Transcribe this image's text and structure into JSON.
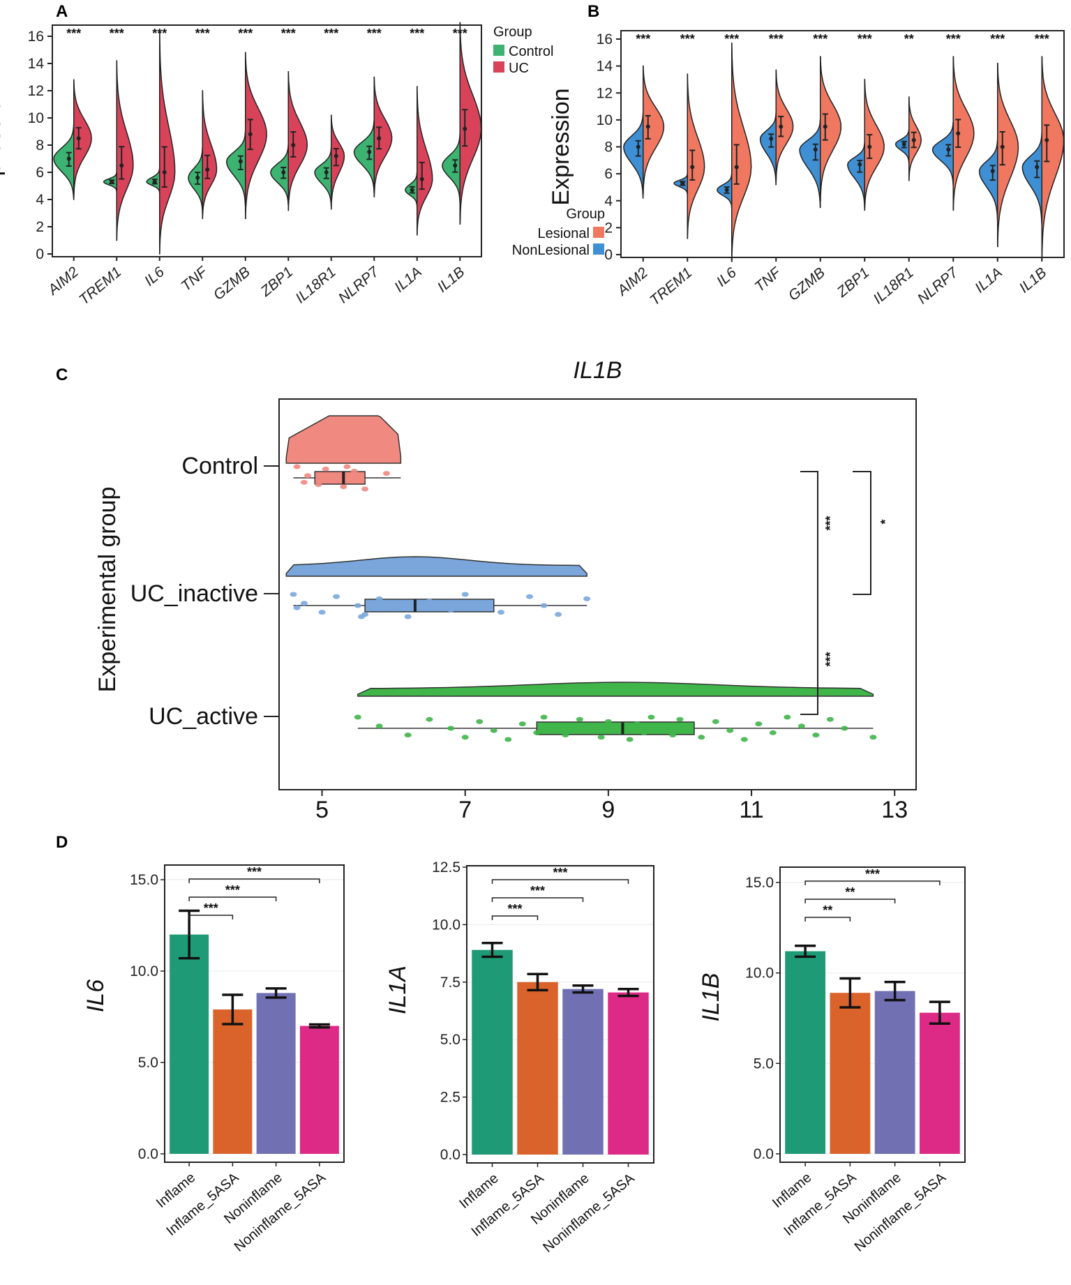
{
  "panel_labels": [
    "A",
    "B",
    "C",
    "D"
  ],
  "chart_data": [
    {
      "panel": "A",
      "type": "violin",
      "ylabel": "Expression",
      "ylim": [
        0,
        16
      ],
      "yticks": [
        0,
        2,
        4,
        6,
        8,
        10,
        12,
        14,
        16
      ],
      "legend": {
        "title": "Group",
        "position": "top-right",
        "entries": [
          {
            "name": "Control",
            "color": "#3cb371"
          },
          {
            "name": "UC",
            "color": "#d9435a"
          }
        ]
      },
      "categories": [
        "AIM2",
        "TREM1",
        "IL6",
        "TNF",
        "GZMB",
        "ZBP1",
        "IL18R1",
        "NLRP7",
        "IL1A",
        "IL1B"
      ],
      "significance": [
        "***",
        "***",
        "***",
        "***",
        "***",
        "***",
        "***",
        "***",
        "***",
        "***"
      ],
      "series": [
        {
          "name": "Control",
          "color": "#3cb371",
          "center": [
            7.0,
            5.3,
            5.3,
            5.6,
            6.8,
            6.0,
            6.0,
            7.5,
            4.7,
            6.5
          ],
          "min": [
            4.0,
            4.6,
            4.5,
            3.0,
            3.5,
            3.6,
            3.5,
            4.5,
            3.5,
            3.8
          ],
          "max": [
            9.5,
            6.0,
            6.3,
            7.8,
            9.0,
            8.0,
            7.8,
            9.8,
            6.0,
            8.8
          ],
          "width": [
            0.85,
            0.55,
            0.55,
            0.6,
            0.8,
            0.75,
            0.7,
            0.85,
            0.5,
            0.75
          ]
        },
        {
          "name": "UC",
          "color": "#d9435a",
          "center": [
            8.5,
            6.5,
            6.0,
            6.2,
            8.8,
            8.0,
            7.2,
            8.5,
            5.5,
            9.2
          ],
          "min": [
            4.2,
            1.0,
            0.0,
            2.6,
            2.6,
            3.2,
            3.3,
            4.2,
            1.4,
            2.2
          ],
          "max": [
            12.8,
            14.2,
            16.4,
            12.0,
            14.8,
            13.4,
            10.2,
            13.0,
            12.3,
            17.0
          ],
          "width": [
            0.75,
            0.7,
            0.65,
            0.6,
            0.9,
            0.8,
            0.55,
            0.75,
            0.65,
            0.9
          ]
        }
      ]
    },
    {
      "panel": "B",
      "type": "violin",
      "ylabel": "Expression",
      "ylim": [
        0,
        16
      ],
      "yticks": [
        0,
        2,
        4,
        6,
        8,
        10,
        12,
        14,
        16
      ],
      "legend": {
        "title": "Group",
        "position": "left",
        "entries": [
          {
            "name": "Lesional",
            "color": "#f07860"
          },
          {
            "name": "NonLesional",
            "color": "#3f8fd4"
          }
        ]
      },
      "categories": [
        "AIM2",
        "TREM1",
        "IL6",
        "TNF",
        "GZMB",
        "ZBP1",
        "IL18R1",
        "NLRP7",
        "IL1A",
        "IL1B"
      ],
      "significance": [
        "***",
        "***",
        "***",
        "***",
        "***",
        "***",
        "**",
        "***",
        "***",
        "***"
      ],
      "series": [
        {
          "name": "NonLesional",
          "color": "#3f8fd4",
          "center": [
            8.0,
            5.3,
            4.8,
            8.6,
            7.8,
            6.7,
            8.2,
            7.8,
            6.2,
            6.5
          ],
          "min": [
            4.2,
            4.5,
            3.5,
            5.2,
            3.5,
            3.5,
            6.8,
            5.2,
            2.5,
            2.2
          ],
          "max": [
            10.5,
            6.0,
            6.0,
            10.5,
            10.0,
            8.3,
            9.3,
            9.8,
            8.5,
            9.0
          ],
          "width": [
            0.8,
            0.55,
            0.6,
            0.65,
            0.85,
            0.7,
            0.55,
            0.85,
            0.75,
            0.8
          ]
        },
        {
          "name": "Lesional",
          "color": "#f07860",
          "center": [
            9.5,
            6.5,
            6.5,
            9.5,
            9.5,
            8.0,
            8.5,
            9.0,
            8.0,
            8.5
          ],
          "min": [
            4.5,
            1.2,
            -0.5,
            5.5,
            4.0,
            3.3,
            5.5,
            3.3,
            0.6,
            -0.3
          ],
          "max": [
            14.0,
            13.4,
            15.7,
            13.7,
            14.7,
            13.0,
            11.7,
            14.7,
            14.2,
            14.7
          ],
          "width": [
            0.85,
            0.7,
            0.8,
            0.7,
            0.85,
            0.8,
            0.5,
            0.85,
            0.85,
            0.9
          ]
        }
      ]
    },
    {
      "panel": "C",
      "type": "raincloud",
      "title": "IL1B",
      "ylabel": "Experimental group",
      "xlim": [
        4.4,
        13.3
      ],
      "xticks": [
        5,
        7,
        9,
        11,
        13
      ],
      "groups": [
        {
          "name": "Control",
          "color": "#f08a80",
          "min": 4.6,
          "q1": 4.9,
          "median": 5.3,
          "q3": 5.6,
          "max": 6.1,
          "density_range": [
            4.5,
            6.1
          ],
          "points": [
            4.65,
            4.8,
            4.95,
            5.05,
            5.2,
            5.3,
            5.45,
            5.55,
            5.6,
            5.9,
            4.75,
            5.35
          ]
        },
        {
          "name": "UC_inactive",
          "color": "#7aa6db",
          "min": 4.6,
          "q1": 5.6,
          "median": 6.3,
          "q3": 7.4,
          "max": 8.7,
          "density_range": [
            4.5,
            8.7
          ],
          "points": [
            4.6,
            4.75,
            5.0,
            5.2,
            5.5,
            5.6,
            5.8,
            6.0,
            6.2,
            6.5,
            6.8,
            7.0,
            7.2,
            7.5,
            7.9,
            8.1,
            8.3,
            8.7,
            4.65,
            5.55
          ]
        },
        {
          "name": "UC_active",
          "color": "#3fb54a",
          "min": 5.5,
          "q1": 8.0,
          "median": 9.2,
          "q3": 10.2,
          "max": 12.7,
          "density_range": [
            5.5,
            12.7
          ],
          "points": [
            5.5,
            5.8,
            6.2,
            6.5,
            6.8,
            7.0,
            7.2,
            7.4,
            7.6,
            7.8,
            8.0,
            8.1,
            8.3,
            8.4,
            8.6,
            8.7,
            8.9,
            9.0,
            9.1,
            9.3,
            9.4,
            9.5,
            9.6,
            9.8,
            9.9,
            10.0,
            10.1,
            10.3,
            10.5,
            10.7,
            10.9,
            11.1,
            11.3,
            11.5,
            11.7,
            11.9,
            12.1,
            12.3,
            12.7
          ]
        }
      ],
      "brackets": [
        {
          "from": "Control",
          "to": "UC_active",
          "label": "***"
        },
        {
          "from": "Control",
          "to": "UC_inactive",
          "label": "*"
        }
      ],
      "extra_labels": [
        "***"
      ]
    },
    {
      "panel": "D1",
      "type": "bar",
      "ylabel": "IL6",
      "ylim": [
        0,
        15
      ],
      "yticks": [
        "0.0",
        "5.0",
        "10.0",
        "15.0"
      ],
      "categories": [
        "Inflame",
        "Inflame_5ASA",
        "Noninflame",
        "Noninflame_5ASA"
      ],
      "values": [
        12.0,
        7.9,
        8.8,
        7.0
      ],
      "errors": [
        1.3,
        0.8,
        0.25,
        0.08
      ],
      "colors": [
        "#1f9a76",
        "#d9632a",
        "#7170b2",
        "#de2a87"
      ],
      "comparisons": [
        {
          "to": 1,
          "label": "***"
        },
        {
          "to": 2,
          "label": "***"
        },
        {
          "to": 3,
          "label": "***"
        }
      ]
    },
    {
      "panel": "D2",
      "type": "bar",
      "ylabel": "IL1A",
      "ylim": [
        0,
        12.5
      ],
      "yticks": [
        "0.0",
        "2.5",
        "5.0",
        "7.5",
        "10.0",
        "12.5"
      ],
      "categories": [
        "Inflame",
        "Inflame_5ASA",
        "Noninflame",
        "Noninflame_5ASA"
      ],
      "values": [
        8.9,
        7.5,
        7.2,
        7.05
      ],
      "errors": [
        0.3,
        0.35,
        0.15,
        0.15
      ],
      "colors": [
        "#1f9a76",
        "#d9632a",
        "#7170b2",
        "#de2a87"
      ],
      "comparisons": [
        {
          "to": 1,
          "label": "***"
        },
        {
          "to": 2,
          "label": "***"
        },
        {
          "to": 3,
          "label": "***"
        }
      ]
    },
    {
      "panel": "D3",
      "type": "bar",
      "ylabel": "IL1B",
      "ylim": [
        0,
        15
      ],
      "yticks": [
        "0.0",
        "5.0",
        "10.0",
        "15.0"
      ],
      "categories": [
        "Inflame",
        "Inflame_5ASA",
        "Noninflame",
        "Noninflame_5ASA"
      ],
      "values": [
        11.2,
        8.9,
        9.0,
        7.8
      ],
      "errors": [
        0.3,
        0.8,
        0.5,
        0.6
      ],
      "colors": [
        "#1f9a76",
        "#d9632a",
        "#7170b2",
        "#de2a87"
      ],
      "comparisons": [
        {
          "to": 1,
          "label": "**"
        },
        {
          "to": 2,
          "label": "**"
        },
        {
          "to": 3,
          "label": "***"
        }
      ]
    }
  ]
}
